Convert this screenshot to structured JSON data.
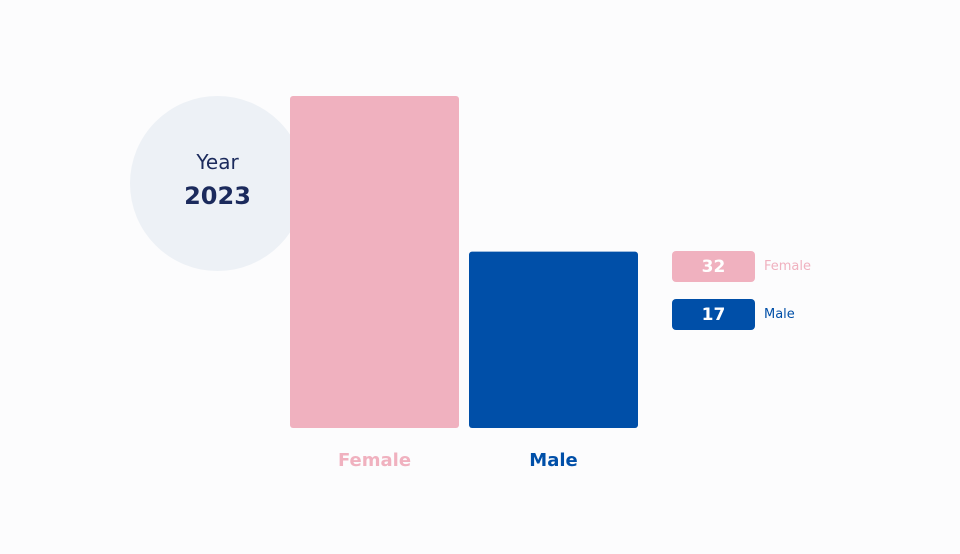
{
  "year_badge": {
    "label": "Year",
    "value": "2023"
  },
  "colors": {
    "female": "#f0b1bf",
    "male": "#004fa8",
    "circle": "#edf1f6",
    "text_dark": "#1b2a5c"
  },
  "legend": [
    {
      "value": "32",
      "name": "Female",
      "color": "#f0b1bf"
    },
    {
      "value": "17",
      "name": "Male",
      "color": "#004fa8"
    }
  ],
  "chart_data": {
    "type": "bar",
    "categories": [
      "Female",
      "Male"
    ],
    "values": [
      32,
      17
    ],
    "colors": [
      "#f0b1bf",
      "#004fa8"
    ],
    "ylim": [
      0,
      32
    ],
    "grid": false,
    "legend_position": "right"
  }
}
